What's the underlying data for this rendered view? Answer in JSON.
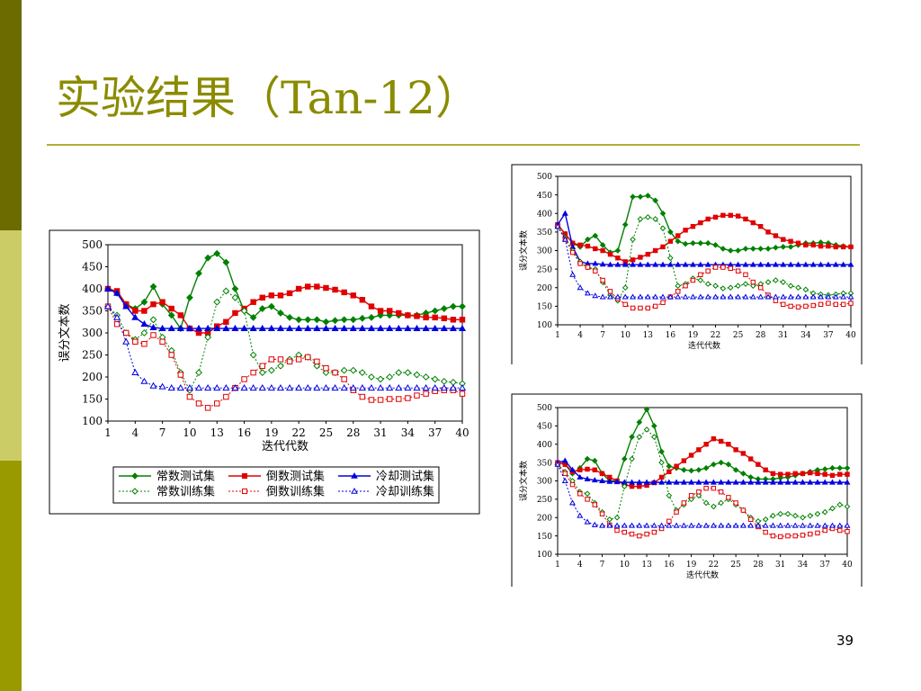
{
  "slide": {
    "title": "实验结果（Tan-12）",
    "page_number": "39"
  },
  "colors": {
    "sidebar_dark": "#6b6b00",
    "sidebar_light": "#cccc66",
    "sidebar_mid": "#999900",
    "title": "#8b8b00",
    "series_green": "#008000",
    "series_red": "#e00000",
    "series_blue": "#0000e0"
  },
  "chart_data": [
    {
      "type": "line",
      "ylabel": "误分文本数",
      "xlabel": "迭代代数",
      "ylim": [
        100,
        500
      ],
      "yticks": [
        100,
        150,
        200,
        250,
        300,
        350,
        400,
        450,
        500
      ],
      "xlim": [
        1,
        40
      ],
      "xticks": [
        1,
        4,
        7,
        10,
        13,
        16,
        19,
        22,
        25,
        28,
        31,
        34,
        37,
        40
      ],
      "legend": "bottom",
      "series": [
        {
          "name": "常数测试集",
          "color": "#008000",
          "dashed": false,
          "marker": "diamond-filled",
          "values": [
            400,
            390,
            365,
            355,
            370,
            405,
            365,
            340,
            310,
            380,
            435,
            470,
            480,
            460,
            400,
            350,
            335,
            355,
            360,
            345,
            335,
            330,
            330,
            330,
            325,
            328,
            330,
            330,
            333,
            335,
            340,
            340,
            340,
            340,
            340,
            345,
            350,
            355,
            360,
            360
          ]
        },
        {
          "name": "倒数测试集",
          "color": "#e00000",
          "dashed": false,
          "marker": "square-filled",
          "values": [
            400,
            395,
            365,
            350,
            350,
            365,
            370,
            355,
            340,
            310,
            300,
            300,
            315,
            325,
            345,
            355,
            370,
            380,
            385,
            385,
            390,
            400,
            405,
            405,
            402,
            398,
            392,
            385,
            375,
            360,
            350,
            350,
            345,
            340,
            338,
            335,
            335,
            333,
            330,
            330
          ]
        },
        {
          "name": "冷却测试集",
          "color": "#0000e0",
          "dashed": false,
          "marker": "triangle-filled",
          "values": [
            400,
            390,
            360,
            335,
            320,
            312,
            310,
            310,
            310,
            310,
            310,
            310,
            310,
            310,
            310,
            310,
            310,
            310,
            310,
            310,
            310,
            310,
            310,
            310,
            310,
            310,
            310,
            310,
            310,
            310,
            310,
            310,
            310,
            310,
            310,
            310,
            310,
            310,
            310,
            310
          ]
        },
        {
          "name": "常数训练集",
          "color": "#008000",
          "dashed": true,
          "marker": "diamond-open",
          "values": [
            360,
            340,
            300,
            285,
            300,
            330,
            290,
            260,
            210,
            170,
            210,
            290,
            370,
            395,
            380,
            350,
            250,
            210,
            215,
            225,
            240,
            250,
            245,
            225,
            210,
            210,
            215,
            215,
            210,
            200,
            195,
            200,
            210,
            210,
            205,
            200,
            195,
            190,
            188,
            185
          ]
        },
        {
          "name": "倒数训练集",
          "color": "#e00000",
          "dashed": true,
          "marker": "square-open",
          "values": [
            360,
            320,
            300,
            280,
            275,
            295,
            280,
            250,
            205,
            155,
            140,
            130,
            140,
            155,
            175,
            195,
            210,
            225,
            240,
            240,
            235,
            240,
            245,
            235,
            220,
            210,
            195,
            170,
            155,
            148,
            148,
            150,
            150,
            152,
            158,
            162,
            168,
            170,
            170,
            162
          ]
        },
        {
          "name": "冷却训练集",
          "color": "#0000e0",
          "dashed": true,
          "marker": "triangle-open",
          "values": [
            360,
            335,
            280,
            210,
            190,
            180,
            178,
            175,
            175,
            175,
            175,
            175,
            175,
            175,
            175,
            175,
            175,
            175,
            175,
            175,
            175,
            175,
            175,
            175,
            175,
            175,
            175,
            175,
            175,
            175,
            175,
            175,
            175,
            175,
            175,
            175,
            175,
            175,
            175,
            175
          ]
        }
      ]
    },
    {
      "type": "line",
      "ylabel": "误分文本数",
      "xlabel": "迭代代数",
      "ylim": [
        100,
        500
      ],
      "yticks": [
        100,
        150,
        200,
        250,
        300,
        350,
        400,
        450,
        500
      ],
      "xlim": [
        1,
        40
      ],
      "xticks": [
        1,
        4,
        7,
        10,
        13,
        16,
        19,
        22,
        25,
        28,
        31,
        34,
        37,
        40
      ],
      "series": [
        {
          "color": "#008000",
          "dashed": false,
          "marker": "diamond-filled",
          "values": [
            370,
            345,
            320,
            310,
            330,
            340,
            315,
            295,
            300,
            370,
            445,
            445,
            448,
            435,
            400,
            350,
            325,
            318,
            320,
            320,
            320,
            315,
            305,
            300,
            300,
            305,
            305,
            305,
            305,
            308,
            310,
            310,
            315,
            320,
            320,
            322,
            320,
            315,
            312,
            310
          ]
        },
        {
          "color": "#e00000",
          "dashed": false,
          "marker": "square-filled",
          "values": [
            370,
            345,
            320,
            315,
            312,
            305,
            300,
            290,
            280,
            270,
            275,
            282,
            290,
            300,
            310,
            325,
            340,
            355,
            365,
            375,
            385,
            390,
            395,
            395,
            393,
            385,
            375,
            365,
            350,
            340,
            330,
            325,
            320,
            315,
            315,
            312,
            312,
            310,
            310,
            310
          ]
        },
        {
          "color": "#0000e0",
          "dashed": false,
          "marker": "triangle-filled",
          "values": [
            370,
            400,
            310,
            270,
            265,
            265,
            263,
            262,
            262,
            262,
            262,
            262,
            262,
            262,
            262,
            262,
            262,
            262,
            262,
            262,
            262,
            262,
            262,
            262,
            262,
            262,
            262,
            262,
            262,
            262,
            262,
            262,
            262,
            262,
            262,
            262,
            262,
            262,
            262,
            262
          ]
        },
        {
          "color": "#008000",
          "dashed": true,
          "marker": "diamond-open",
          "values": [
            365,
            335,
            300,
            270,
            255,
            250,
            215,
            180,
            165,
            200,
            330,
            385,
            390,
            385,
            360,
            280,
            205,
            210,
            225,
            220,
            210,
            205,
            198,
            200,
            205,
            210,
            205,
            210,
            215,
            220,
            215,
            205,
            200,
            195,
            185,
            182,
            180,
            182,
            185,
            185
          ]
        },
        {
          "color": "#e00000",
          "dashed": true,
          "marker": "square-open",
          "values": [
            365,
            330,
            295,
            265,
            255,
            245,
            220,
            190,
            170,
            155,
            145,
            145,
            145,
            150,
            160,
            175,
            190,
            205,
            220,
            235,
            245,
            255,
            255,
            252,
            245,
            235,
            215,
            200,
            180,
            165,
            155,
            150,
            148,
            150,
            152,
            155,
            158,
            155,
            155,
            158
          ]
        },
        {
          "color": "#0000e0",
          "dashed": true,
          "marker": "triangle-open",
          "values": [
            365,
            330,
            235,
            200,
            185,
            178,
            175,
            175,
            175,
            175,
            175,
            175,
            175,
            175,
            175,
            175,
            175,
            175,
            175,
            175,
            175,
            175,
            175,
            175,
            175,
            175,
            175,
            175,
            175,
            175,
            175,
            175,
            175,
            175,
            175,
            175,
            175,
            175,
            175,
            175
          ]
        }
      ]
    },
    {
      "type": "line",
      "ylabel": "误分文本数",
      "xlabel": "迭代代数",
      "ylim": [
        100,
        500
      ],
      "yticks": [
        100,
        150,
        200,
        250,
        300,
        350,
        400,
        450,
        500
      ],
      "xlim": [
        1,
        40
      ],
      "xticks": [
        1,
        4,
        7,
        10,
        13,
        16,
        19,
        22,
        25,
        28,
        31,
        34,
        37,
        40
      ],
      "series": [
        {
          "color": "#008000",
          "dashed": false,
          "marker": "diamond-filled",
          "values": [
            350,
            345,
            320,
            335,
            360,
            355,
            320,
            300,
            300,
            360,
            420,
            460,
            495,
            450,
            380,
            340,
            335,
            330,
            328,
            330,
            335,
            345,
            350,
            345,
            330,
            320,
            310,
            305,
            305,
            305,
            308,
            310,
            315,
            320,
            325,
            330,
            332,
            335,
            335,
            335
          ]
        },
        {
          "color": "#e00000",
          "dashed": false,
          "marker": "square-filled",
          "values": [
            350,
            345,
            325,
            330,
            332,
            330,
            320,
            310,
            300,
            290,
            285,
            285,
            288,
            295,
            310,
            325,
            340,
            355,
            370,
            385,
            400,
            415,
            408,
            400,
            385,
            375,
            360,
            345,
            330,
            320,
            318,
            318,
            320,
            320,
            322,
            320,
            318,
            315,
            318,
            318
          ]
        },
        {
          "color": "#0000e0",
          "dashed": false,
          "marker": "triangle-filled",
          "values": [
            350,
            355,
            330,
            310,
            305,
            302,
            300,
            298,
            297,
            296,
            296,
            296,
            296,
            296,
            296,
            296,
            296,
            296,
            296,
            296,
            296,
            296,
            296,
            296,
            296,
            296,
            296,
            296,
            296,
            296,
            296,
            296,
            296,
            296,
            296,
            296,
            296,
            296,
            296,
            296
          ]
        },
        {
          "color": "#008000",
          "dashed": true,
          "marker": "diamond-open",
          "values": [
            345,
            325,
            300,
            270,
            265,
            240,
            215,
            195,
            200,
            285,
            360,
            420,
            440,
            420,
            350,
            260,
            220,
            235,
            250,
            260,
            240,
            230,
            240,
            250,
            235,
            220,
            200,
            190,
            195,
            205,
            210,
            210,
            205,
            200,
            205,
            210,
            215,
            225,
            235,
            230
          ]
        },
        {
          "color": "#e00000",
          "dashed": true,
          "marker": "square-open",
          "values": [
            345,
            320,
            290,
            265,
            250,
            235,
            210,
            180,
            165,
            160,
            155,
            150,
            155,
            160,
            170,
            190,
            215,
            240,
            260,
            270,
            280,
            280,
            270,
            255,
            240,
            220,
            195,
            175,
            160,
            150,
            148,
            150,
            150,
            152,
            155,
            158,
            165,
            170,
            165,
            162
          ]
        },
        {
          "color": "#0000e0",
          "dashed": true,
          "marker": "triangle-open",
          "values": [
            345,
            300,
            240,
            205,
            188,
            180,
            178,
            178,
            178,
            178,
            178,
            178,
            178,
            178,
            178,
            178,
            178,
            178,
            178,
            178,
            178,
            178,
            178,
            178,
            178,
            178,
            178,
            178,
            178,
            178,
            178,
            178,
            178,
            178,
            178,
            178,
            178,
            178,
            178,
            178
          ]
        }
      ]
    }
  ]
}
